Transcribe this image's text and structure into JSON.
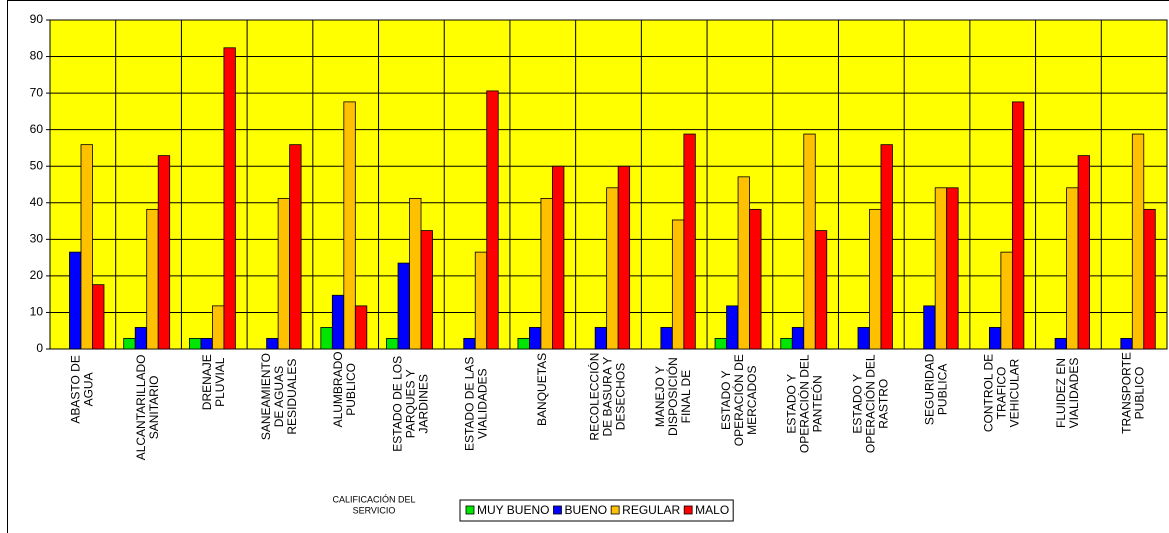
{
  "chart_data": {
    "type": "bar",
    "categories": [
      "ABASTO DE\nAGUA",
      "ALCANTARILLADO\nSANITARIO",
      "DRENAJE\nPLUVIAL",
      "SANEAMIENTO\nDE AGUAS\nRESIDUALES",
      "ALUMBRADO\nPUBLICO",
      "ESTADO DE LOS\nPARQUES Y\nJARDINES",
      "ESTADO DE LAS\nVIALIDADES",
      "BANQUETAS",
      "RECOLECCIÓN\nDE BASURA Y\nDESECHOS",
      "MANEJO Y\nDISPOSICIÓN\nFINAL DE",
      "ESTADO Y\nOPERACIÓN DE\nMERCADOS",
      "ESTADO Y\nOPERACIÓN DEL\nPANTEÓN",
      "ESTADO Y\nOPERACIÓN DEL\nRASTRO",
      "SEGURIDAD\nPUBLICA",
      "CONTROL DE\nTRAFICO\nVEHICULAR",
      "FLUIDEZ EN\nVIALIDADES",
      "TRANSPORTE\nPUBLICO"
    ],
    "series": [
      {
        "name": "MUY BUENO",
        "color": "#00e600",
        "values": [
          0,
          2.9,
          2.9,
          0,
          5.9,
          2.9,
          0,
          2.9,
          0,
          0,
          2.9,
          2.9,
          0,
          0,
          0,
          0,
          0
        ]
      },
      {
        "name": "BUENO",
        "color": "#0000ff",
        "values": [
          26.5,
          5.9,
          2.9,
          2.9,
          14.7,
          23.5,
          2.9,
          5.9,
          5.9,
          5.9,
          11.8,
          5.9,
          5.9,
          11.8,
          5.9,
          2.9,
          2.9
        ]
      },
      {
        "name": "REGULAR",
        "color": "#ffc000",
        "values": [
          55.9,
          38.2,
          11.8,
          41.2,
          67.6,
          41.2,
          26.5,
          41.2,
          44.1,
          35.3,
          47.1,
          58.8,
          38.2,
          44.1,
          26.5,
          44.1,
          58.8
        ]
      },
      {
        "name": "MALO",
        "color": "#ff0000",
        "values": [
          17.6,
          52.9,
          82.4,
          55.9,
          11.8,
          32.4,
          70.6,
          50,
          50,
          58.8,
          38.2,
          32.4,
          55.9,
          44.1,
          67.6,
          52.9,
          38.2
        ]
      }
    ],
    "x_label": "CALIFICACIÓN DEL\nSERVICIO",
    "ylim": [
      0,
      90
    ],
    "yticks": [
      0,
      10,
      20,
      30,
      40,
      50,
      60,
      70,
      80,
      90
    ],
    "grid": true,
    "plot_background": "#ffff00",
    "legend": "bottom"
  }
}
